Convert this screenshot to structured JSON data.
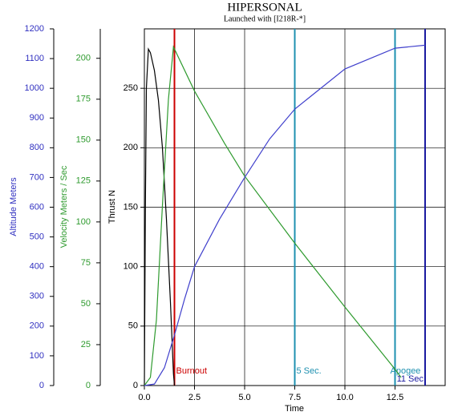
{
  "chart_data": {
    "type": "line",
    "title": "HIPERSONAL",
    "subtitle": "Launched with [I218R-*]",
    "xlabel": "Time",
    "ylabel": "Thrust N",
    "y2label": "Velocity Meters / Sec",
    "y3label": "Altitude Meters",
    "y2color": "#2e9a2e",
    "y3color": "#3030c0",
    "xlim": [
      0,
      15
    ],
    "xticks": [
      {
        "value": 0,
        "label": "0.0"
      },
      2.5,
      {
        "value": 5,
        "label": "5.0"
      },
      7.5,
      {
        "value": 10,
        "label": "10.0"
      },
      12.5
    ],
    "ylim": [
      0,
      300
    ],
    "yticks": [
      0,
      50,
      100,
      150,
      200,
      250
    ],
    "y2lim": [
      0,
      218
    ],
    "y2ticks": [
      0,
      25,
      50,
      75,
      100,
      125,
      150,
      175,
      200
    ],
    "y3lim": [
      0,
      1200
    ],
    "y3ticks": [
      0,
      100,
      200,
      300,
      400,
      500,
      600,
      700,
      800,
      900,
      1000,
      1100,
      1200
    ],
    "grid": true,
    "series": [
      {
        "color": "#000000",
        "axis": "y",
        "x": [
          0,
          0.05,
          0.1,
          0.2,
          0.3,
          0.5,
          0.7,
          0.9,
          1.1,
          1.3,
          1.45,
          1.5
        ],
        "values": [
          0,
          150,
          250,
          283,
          280,
          265,
          240,
          200,
          140,
          70,
          10,
          0
        ]
      },
      {
        "color": "#2e9a2e",
        "axis": "y2",
        "x": [
          0,
          0.3,
          0.6,
          0.9,
          1.2,
          1.45,
          2.5,
          4,
          5,
          7.5,
          10,
          12.5,
          12.8
        ],
        "values": [
          0,
          5,
          40,
          110,
          175,
          207,
          180,
          148,
          128,
          87,
          48,
          10,
          5
        ]
      },
      {
        "color": "#4040cc",
        "axis": "y3",
        "x": [
          0,
          0.5,
          1,
          1.5,
          2,
          2.5,
          3.75,
          5,
          6.25,
          7.5,
          10,
          12.5,
          14
        ],
        "values": [
          0,
          5,
          60,
          170,
          290,
          400,
          560,
          700,
          830,
          930,
          1065,
          1135,
          1145
        ]
      }
    ],
    "vlines": [
      {
        "x": 1.5,
        "color": "#cc0000",
        "label": "Burnout"
      },
      {
        "x": 7.5,
        "color": "#1e90b0",
        "label": "5 Sec."
      },
      {
        "x": 12.5,
        "color": "#1e90b0",
        "label": "Apogee"
      },
      {
        "x": 14,
        "color": "#1a1aa0",
        "label": "11 Sec"
      }
    ]
  }
}
